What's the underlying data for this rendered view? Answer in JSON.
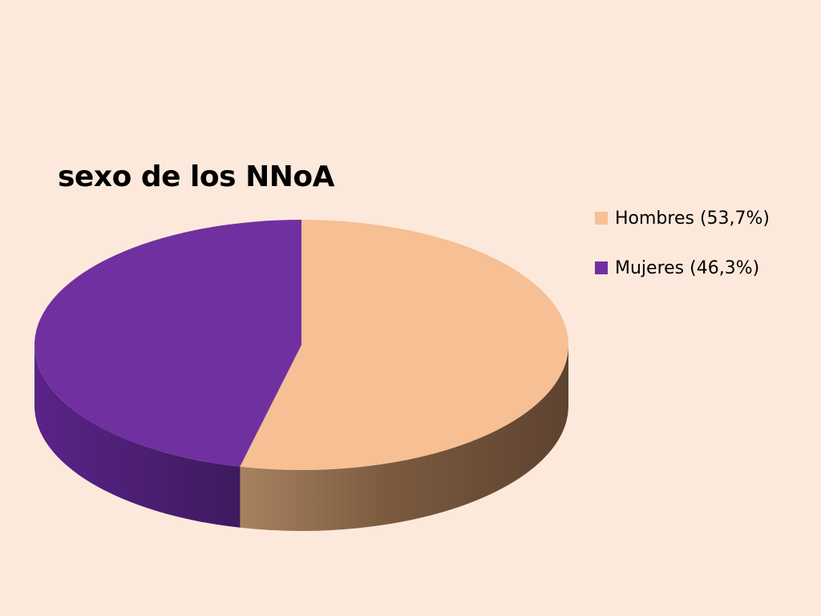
{
  "chart_data": {
    "type": "pie",
    "title": "sexo de los NNoA",
    "three_d": true,
    "legend_position": "right",
    "slices": [
      {
        "label": "Hombres (53,7%)",
        "value": 53.7,
        "color": "#f6bf94",
        "side_color": "#7f5c40"
      },
      {
        "label": "Mujeres (46,3%)",
        "value": 46.3,
        "color": "#7030a0",
        "side_color": "#4e2175"
      }
    ]
  }
}
